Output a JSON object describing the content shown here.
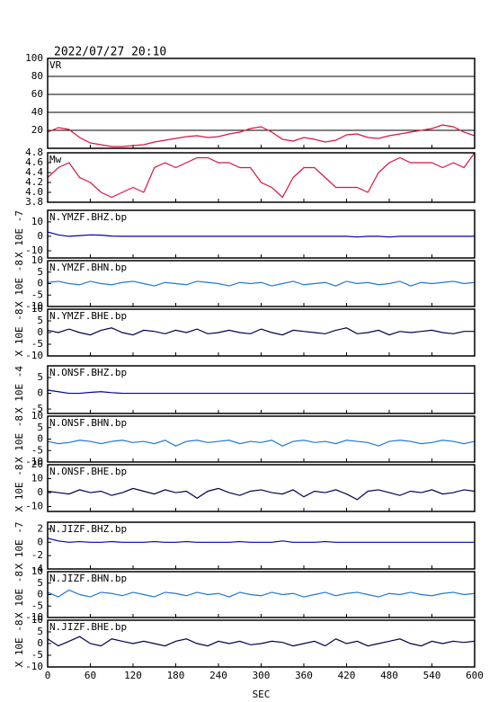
{
  "chart_data": [
    {
      "type": "line",
      "title": "2022/07/27 20:10",
      "label": "VR",
      "color": "#dc143c",
      "grid": true,
      "x": [
        0,
        15,
        30,
        45,
        60,
        75,
        90,
        105,
        120,
        135,
        150,
        165,
        180,
        195,
        210,
        225,
        240,
        255,
        270,
        285,
        300,
        315,
        330,
        345,
        360,
        375,
        390,
        405,
        420,
        435,
        450,
        465,
        480,
        495,
        510,
        525,
        540,
        555,
        570,
        585,
        600
      ],
      "values": [
        18,
        23,
        21,
        12,
        6,
        4,
        2,
        2,
        3,
        4,
        7,
        9,
        11,
        13,
        14,
        12,
        13,
        16,
        18,
        22,
        24,
        18,
        10,
        8,
        12,
        10,
        7,
        9,
        15,
        16,
        12,
        11,
        14,
        16,
        18,
        20,
        22,
        26,
        24,
        18,
        14
      ],
      "xlim": [
        0,
        600
      ],
      "ylim": [
        0,
        100
      ],
      "yticks": [
        20,
        40,
        60,
        80,
        100
      ]
    },
    {
      "type": "line",
      "label": "Mw",
      "color": "#dc143c",
      "x": [
        0,
        15,
        30,
        45,
        60,
        75,
        90,
        105,
        120,
        135,
        150,
        165,
        180,
        195,
        210,
        225,
        240,
        255,
        270,
        285,
        300,
        315,
        330,
        345,
        360,
        375,
        390,
        405,
        420,
        435,
        450,
        465,
        480,
        495,
        510,
        525,
        540,
        555,
        570,
        585,
        600
      ],
      "values": [
        4.3,
        4.5,
        4.6,
        4.3,
        4.2,
        4.0,
        3.9,
        4.0,
        4.1,
        4.0,
        4.5,
        4.6,
        4.5,
        4.6,
        4.7,
        4.7,
        4.6,
        4.6,
        4.5,
        4.5,
        4.2,
        4.1,
        3.9,
        4.3,
        4.5,
        4.5,
        4.3,
        4.1,
        4.1,
        4.1,
        4.0,
        4.4,
        4.6,
        4.7,
        4.6,
        4.6,
        4.6,
        4.5,
        4.6,
        4.5,
        4.8
      ],
      "xlim": [
        0,
        600
      ],
      "ylim": [
        3.8,
        4.8
      ],
      "yticks": [
        3.8,
        {
          "value": 4,
          "label": "4.0"
        },
        4.2,
        4.4,
        4.6,
        4.8
      ]
    },
    {
      "type": "line",
      "label": "N.YMZF.BHZ.bp",
      "y_label": "X 10E -7",
      "color": "#0000aa",
      "x": [
        0,
        15,
        30,
        45,
        60,
        75,
        90,
        105,
        120,
        135,
        150,
        165,
        180,
        195,
        210,
        225,
        240,
        255,
        270,
        285,
        300,
        315,
        330,
        345,
        360,
        375,
        390,
        405,
        420,
        435,
        450,
        465,
        480,
        495,
        510,
        525,
        540,
        555,
        570,
        585,
        600
      ],
      "values": [
        3,
        1,
        0,
        0.5,
        1,
        0.8,
        0.2,
        0,
        0,
        0,
        0,
        0,
        0,
        0,
        0,
        0,
        0,
        0,
        0,
        0,
        0,
        0,
        0,
        0,
        0,
        0,
        0,
        0,
        0,
        -0.5,
        0,
        0,
        -0.5,
        0,
        0,
        0,
        0,
        0,
        0,
        0,
        0
      ],
      "xlim": [
        0,
        600
      ],
      "ylim": [
        -15,
        18
      ],
      "yticks": [
        -10,
        0,
        10
      ]
    },
    {
      "type": "line",
      "label": "N.YMZF.BHN.bp",
      "y_label": "X 10E -8",
      "color": "#1e78d2",
      "x": [
        0,
        15,
        30,
        45,
        60,
        75,
        90,
        105,
        120,
        135,
        150,
        165,
        180,
        195,
        210,
        225,
        240,
        255,
        270,
        285,
        300,
        315,
        330,
        345,
        360,
        375,
        390,
        405,
        420,
        435,
        450,
        465,
        480,
        495,
        510,
        525,
        540,
        555,
        570,
        585,
        600
      ],
      "values": [
        0.5,
        1,
        0,
        -0.5,
        1,
        0,
        -0.5,
        0.5,
        1,
        0,
        -1,
        0.5,
        0,
        -0.5,
        1,
        0.5,
        0,
        -1,
        0.5,
        0,
        0.5,
        -1,
        0,
        1,
        -0.5,
        0,
        0.5,
        -1,
        1,
        0,
        0.5,
        -0.5,
        0,
        1,
        -1,
        0.5,
        0,
        0.5,
        1,
        0,
        0.5
      ],
      "xlim": [
        0,
        600
      ],
      "ylim": [
        -10,
        10
      ],
      "yticks": [
        -10,
        -5,
        0,
        5,
        10
      ]
    },
    {
      "type": "line",
      "label": "N.YMZF.BHE.bp",
      "y_label": "X 10E -8",
      "color": "#000050",
      "x": [
        0,
        15,
        30,
        45,
        60,
        75,
        90,
        105,
        120,
        135,
        150,
        165,
        180,
        195,
        210,
        225,
        240,
        255,
        270,
        285,
        300,
        315,
        330,
        345,
        360,
        375,
        390,
        405,
        420,
        435,
        450,
        465,
        480,
        495,
        510,
        525,
        540,
        555,
        570,
        585,
        600
      ],
      "values": [
        1,
        0,
        1.5,
        0,
        -1,
        1,
        2,
        0,
        -1,
        1,
        0.5,
        -0.5,
        1,
        0,
        1.5,
        -0.5,
        0,
        1,
        0,
        -0.5,
        1.5,
        0,
        -1,
        1,
        0.5,
        0,
        -0.5,
        1,
        2,
        -0.5,
        0,
        1,
        -1,
        0.5,
        0,
        0.5,
        1,
        0,
        -0.5,
        0.5,
        0.5
      ],
      "xlim": [
        0,
        600
      ],
      "ylim": [
        -10,
        10
      ],
      "yticks": [
        -10,
        -5,
        0,
        5,
        10
      ]
    },
    {
      "type": "line",
      "label": "N.ONSF.BHZ.bp",
      "y_label": "X 10E -4",
      "color": "#0000aa",
      "x": [
        0,
        15,
        30,
        45,
        60,
        75,
        90,
        105,
        120,
        135,
        150,
        165,
        180,
        195,
        210,
        225,
        240,
        255,
        270,
        285,
        300,
        315,
        330,
        345,
        360,
        375,
        390,
        405,
        420,
        435,
        450,
        465,
        480,
        495,
        510,
        525,
        540,
        555,
        570,
        585,
        600
      ],
      "values": [
        1,
        0.5,
        0,
        0,
        0.3,
        0.5,
        0.2,
        0,
        0,
        0,
        0,
        0,
        0,
        0,
        0,
        0,
        0,
        0,
        0,
        0,
        0,
        0,
        0,
        0,
        0,
        0,
        0,
        0,
        0,
        0,
        0,
        0,
        0,
        0,
        0,
        0,
        0,
        0,
        0,
        0,
        0
      ],
      "xlim": [
        0,
        600
      ],
      "ylim": [
        -6.4,
        8.7
      ],
      "yticks": [
        -5,
        0,
        5
      ]
    },
    {
      "type": "line",
      "label": "N.ONSF.BHN.bp",
      "y_label": "X 10E -8",
      "color": "#1e78d2",
      "x": [
        0,
        15,
        30,
        45,
        60,
        75,
        90,
        105,
        120,
        135,
        150,
        165,
        180,
        195,
        210,
        225,
        240,
        255,
        270,
        285,
        300,
        315,
        330,
        345,
        360,
        375,
        390,
        405,
        420,
        435,
        450,
        465,
        480,
        495,
        510,
        525,
        540,
        555,
        570,
        585,
        600
      ],
      "values": [
        -1,
        -2,
        -1.5,
        -0.5,
        -1,
        -2,
        -1,
        -0.5,
        -1.5,
        -1,
        -2,
        -0.5,
        -3,
        -1,
        -0.5,
        -1.5,
        -1,
        -0.5,
        -2,
        -1,
        -1.5,
        -0.5,
        -3,
        -1,
        -0.5,
        -1.5,
        -1,
        -2,
        -0.5,
        -1,
        -1.5,
        -3,
        -1,
        -0.5,
        -1,
        -2,
        -1.5,
        -0.5,
        -1,
        -2,
        -1
      ],
      "xlim": [
        0,
        600
      ],
      "ylim": [
        -10,
        10
      ],
      "yticks": [
        -10,
        -5,
        0,
        5,
        10
      ]
    },
    {
      "type": "line",
      "label": "N.ONSF.BHE.bp",
      "y_label": "X 10E -8",
      "color": "#000050",
      "x": [
        0,
        15,
        30,
        45,
        60,
        75,
        90,
        105,
        120,
        135,
        150,
        165,
        180,
        195,
        210,
        225,
        240,
        255,
        270,
        285,
        300,
        315,
        330,
        345,
        360,
        375,
        390,
        405,
        420,
        435,
        450,
        465,
        480,
        495,
        510,
        525,
        540,
        555,
        570,
        585,
        600
      ],
      "values": [
        1,
        0,
        -1,
        2,
        0,
        1,
        -2,
        0,
        3,
        1,
        -1,
        2,
        0,
        1,
        -4,
        1,
        3,
        0,
        -2,
        1,
        2,
        0,
        -1,
        2,
        -3,
        1,
        0,
        2,
        -1,
        -5,
        1,
        2,
        0,
        -2,
        1,
        0,
        2,
        -1,
        0,
        2,
        1
      ],
      "xlim": [
        0,
        600
      ],
      "ylim": [
        -13.5,
        20
      ],
      "yticks": [
        -10,
        0,
        10,
        20
      ]
    },
    {
      "type": "line",
      "label": "N.JIZF.BHZ.bp",
      "y_label": "X 10E -7",
      "color": "#0000aa",
      "x": [
        0,
        15,
        30,
        45,
        60,
        75,
        90,
        105,
        120,
        135,
        150,
        165,
        180,
        195,
        210,
        225,
        240,
        255,
        270,
        285,
        300,
        315,
        330,
        345,
        360,
        375,
        390,
        405,
        420,
        435,
        450,
        465,
        480,
        495,
        510,
        525,
        540,
        555,
        570,
        585,
        600
      ],
      "values": [
        0.6,
        0.2,
        0,
        0.1,
        0,
        0,
        0.1,
        0,
        0,
        0,
        0.1,
        0,
        0,
        0.1,
        0,
        0,
        0,
        0,
        0.1,
        0,
        0,
        0,
        0.2,
        0,
        0,
        0,
        0.1,
        0,
        0,
        0,
        0,
        0,
        0,
        0,
        0,
        0,
        0,
        0,
        0,
        0,
        0
      ],
      "xlim": [
        0,
        600
      ],
      "ylim": [
        -4,
        3
      ],
      "yticks": [
        -4,
        -2,
        0,
        2
      ]
    },
    {
      "type": "line",
      "label": "N.JIZF.BHN.bp",
      "y_label": "X 10E -8",
      "color": "#1e78d2",
      "x": [
        0,
        15,
        30,
        45,
        60,
        75,
        90,
        105,
        120,
        135,
        150,
        165,
        180,
        195,
        210,
        225,
        240,
        255,
        270,
        285,
        300,
        315,
        330,
        345,
        360,
        375,
        390,
        405,
        420,
        435,
        450,
        465,
        480,
        495,
        510,
        525,
        540,
        555,
        570,
        585,
        600
      ],
      "values": [
        1,
        -1,
        2,
        0,
        -1,
        1,
        0.5,
        -0.5,
        1,
        0,
        -1,
        1,
        0.5,
        -0.5,
        1,
        0,
        0.5,
        -1,
        1,
        0,
        -0.5,
        1,
        0,
        0.5,
        -1,
        0,
        1,
        -0.5,
        0.5,
        1,
        0,
        -1,
        0.5,
        0,
        1,
        0,
        -0.5,
        0.5,
        1,
        0,
        0.5
      ],
      "xlim": [
        0,
        600
      ],
      "ylim": [
        -10,
        10
      ],
      "yticks": [
        -10,
        -5,
        0,
        5,
        10
      ]
    },
    {
      "type": "line",
      "label": "N.JIZF.BHE.bp",
      "y_label": "X 10E -8",
      "color": "#000050",
      "x": [
        0,
        15,
        30,
        45,
        60,
        75,
        90,
        105,
        120,
        135,
        150,
        165,
        180,
        195,
        210,
        225,
        240,
        255,
        270,
        285,
        300,
        315,
        330,
        345,
        360,
        375,
        390,
        405,
        420,
        435,
        450,
        465,
        480,
        495,
        510,
        525,
        540,
        555,
        570,
        585,
        600
      ],
      "values": [
        2,
        -1,
        1,
        3,
        0,
        -1,
        2,
        1,
        0,
        1,
        0,
        -1,
        1,
        2,
        0,
        -1,
        1,
        0,
        1,
        -0.5,
        0,
        1,
        0.5,
        -1,
        0,
        1,
        -1,
        2,
        0,
        1,
        -1,
        0,
        1,
        2,
        0,
        -1,
        1,
        0,
        1,
        0.5,
        1
      ],
      "xlim": [
        0,
        600
      ],
      "ylim": [
        -10,
        10
      ],
      "yticks": [
        -10,
        -5,
        0,
        5,
        10
      ],
      "xticks": [
        0,
        60,
        120,
        180,
        240,
        300,
        360,
        420,
        480,
        540,
        600
      ],
      "xlabel": "SEC"
    }
  ]
}
